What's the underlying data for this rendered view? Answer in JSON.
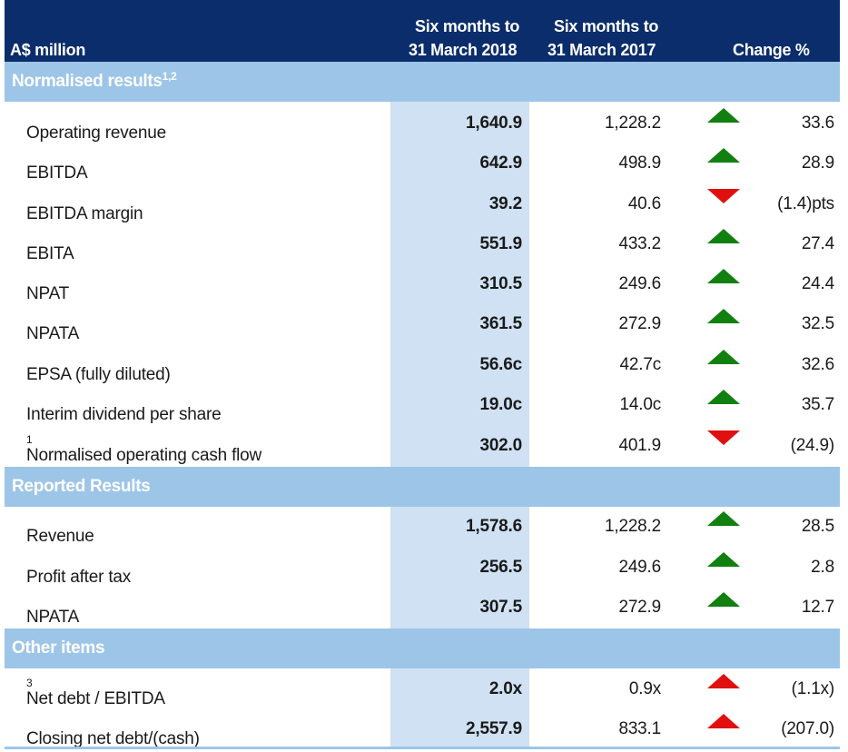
{
  "header": {
    "unit_label": "A$ million",
    "col1_line1": "Six months to",
    "col1_line2": "31 March 2018",
    "col2_line1": "Six months to",
    "col2_line2": "31 March 2017",
    "col3": "Change %"
  },
  "sections": {
    "normalised": {
      "title": "Normalised results",
      "sup": "1,2"
    },
    "reported": {
      "title": "Reported Results"
    },
    "other": {
      "title": "Other items"
    }
  },
  "rows": [
    {
      "label": "Operating revenue",
      "sup": "",
      "v2018": "1,640.9",
      "v2017": "1,228.2",
      "change": "33.6",
      "indicator": "up-green"
    },
    {
      "label": "EBITDA",
      "sup": "",
      "v2018": "642.9",
      "v2017": "498.9",
      "change": "28.9",
      "indicator": "up-green"
    },
    {
      "label": "EBITDA margin",
      "sup": "",
      "v2018": "39.2",
      "v2017": "40.6",
      "change": "(1.4)pts",
      "indicator": "down-red"
    },
    {
      "label": "EBITA",
      "sup": "",
      "v2018": "551.9",
      "v2017": "433.2",
      "change": "27.4",
      "indicator": "up-green"
    },
    {
      "label": "NPAT",
      "sup": "",
      "v2018": "310.5",
      "v2017": "249.6",
      "change": "24.4",
      "indicator": "up-green"
    },
    {
      "label": "NPATA",
      "sup": "",
      "v2018": "361.5",
      "v2017": "272.9",
      "change": "32.5",
      "indicator": "up-green"
    },
    {
      "label": "EPSA (fully diluted)",
      "sup": "",
      "v2018": "56.6c",
      "v2017": "42.7c",
      "change": "32.6",
      "indicator": "up-green"
    },
    {
      "label": "Interim dividend per share",
      "sup": "",
      "v2018": "19.0c",
      "v2017": "14.0c",
      "change": "35.7",
      "indicator": "up-green"
    },
    {
      "label": "Normalised operating cash flow",
      "sup": "1",
      "v2018": "302.0",
      "v2017": "401.9",
      "change": "(24.9)",
      "indicator": "down-red"
    },
    {
      "label": "Revenue",
      "sup": "",
      "v2018": "1,578.6",
      "v2017": "1,228.2",
      "change": "28.5",
      "indicator": "up-green"
    },
    {
      "label": "Profit after tax",
      "sup": "",
      "v2018": "256.5",
      "v2017": "249.6",
      "change": "2.8",
      "indicator": "up-green"
    },
    {
      "label": "NPATA",
      "sup": "",
      "v2018": "307.5",
      "v2017": "272.9",
      "change": "12.7",
      "indicator": "up-green"
    },
    {
      "label": "Net debt / EBITDA",
      "sup": "3",
      "v2018": "2.0x",
      "v2017": "0.9x",
      "change": "(1.1x)",
      "indicator": "up-red"
    },
    {
      "label": "Closing net debt/(cash)",
      "sup": "",
      "v2018": "2,557.9",
      "v2017": "833.1",
      "change": "(207.0)",
      "indicator": "up-red"
    }
  ],
  "colors": {
    "header_bg": "#0b2d6b",
    "section_bg": "#9dc5e8",
    "highlight_col": "#cfe1f3",
    "green": "#118011",
    "red": "#e01010"
  }
}
